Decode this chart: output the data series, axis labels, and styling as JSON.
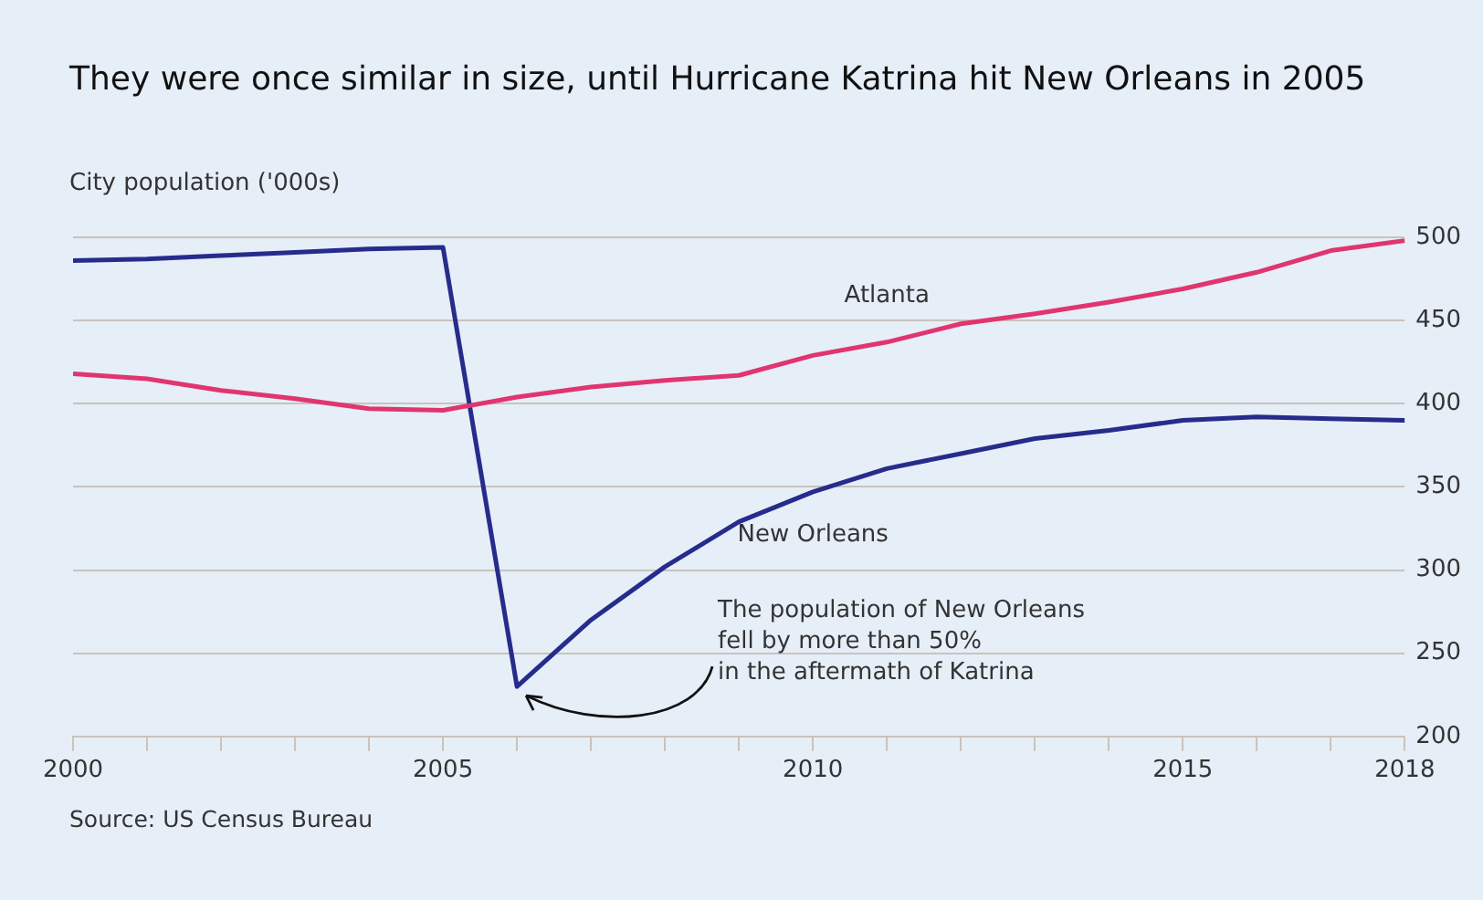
{
  "chart_data": {
    "type": "line",
    "title": "They were once similar in size, until Hurricane Katrina hit New Orleans in 2005",
    "ylabel": "City population ('000s)",
    "x": [
      2000,
      2001,
      2002,
      2003,
      2004,
      2005,
      2006,
      2007,
      2008,
      2009,
      2010,
      2011,
      2012,
      2013,
      2014,
      2015,
      2016,
      2017,
      2018
    ],
    "series": [
      {
        "name": "Atlanta",
        "color": "#e0356f",
        "values": [
          418,
          415,
          408,
          403,
          397,
          396,
          404,
          410,
          414,
          417,
          429,
          437,
          448,
          454,
          461,
          469,
          479,
          492,
          498
        ]
      },
      {
        "name": "New Orleans",
        "color": "#262c8c",
        "values": [
          486,
          487,
          489,
          491,
          493,
          494,
          230,
          270,
          302,
          329,
          347,
          361,
          370,
          379,
          384,
          390,
          392,
          391,
          390
        ]
      }
    ],
    "xlim": [
      2000,
      2018
    ],
    "xticks": [
      2000,
      {
        "value": 2001,
        "label": null
      },
      {
        "value": 2002,
        "label": null
      },
      {
        "value": 2003,
        "label": null
      },
      {
        "value": 2004,
        "label": null
      },
      2005,
      {
        "value": 2006,
        "label": null
      },
      {
        "value": 2007,
        "label": null
      },
      {
        "value": 2008,
        "label": null
      },
      {
        "value": 2009,
        "label": null
      },
      2010,
      {
        "value": 2011,
        "label": null
      },
      {
        "value": 2012,
        "label": null
      },
      {
        "value": 2013,
        "label": null
      },
      {
        "value": 2014,
        "label": null
      },
      2015,
      {
        "value": 2016,
        "label": null
      },
      {
        "value": 2017,
        "label": null
      },
      2018
    ],
    "ylim": [
      200,
      500
    ],
    "yticks": [
      200,
      250,
      300,
      350,
      400,
      450,
      500
    ],
    "grid": "y",
    "legend": false,
    "marker": "none",
    "line_style": "solid",
    "annotations": [
      {
        "text": "The population of New Orleans\nfell by more than 50%\nin the aftermath of Katrina",
        "x": 2006,
        "y": 230
      },
      "Source: US Census Bureau"
    ]
  }
}
